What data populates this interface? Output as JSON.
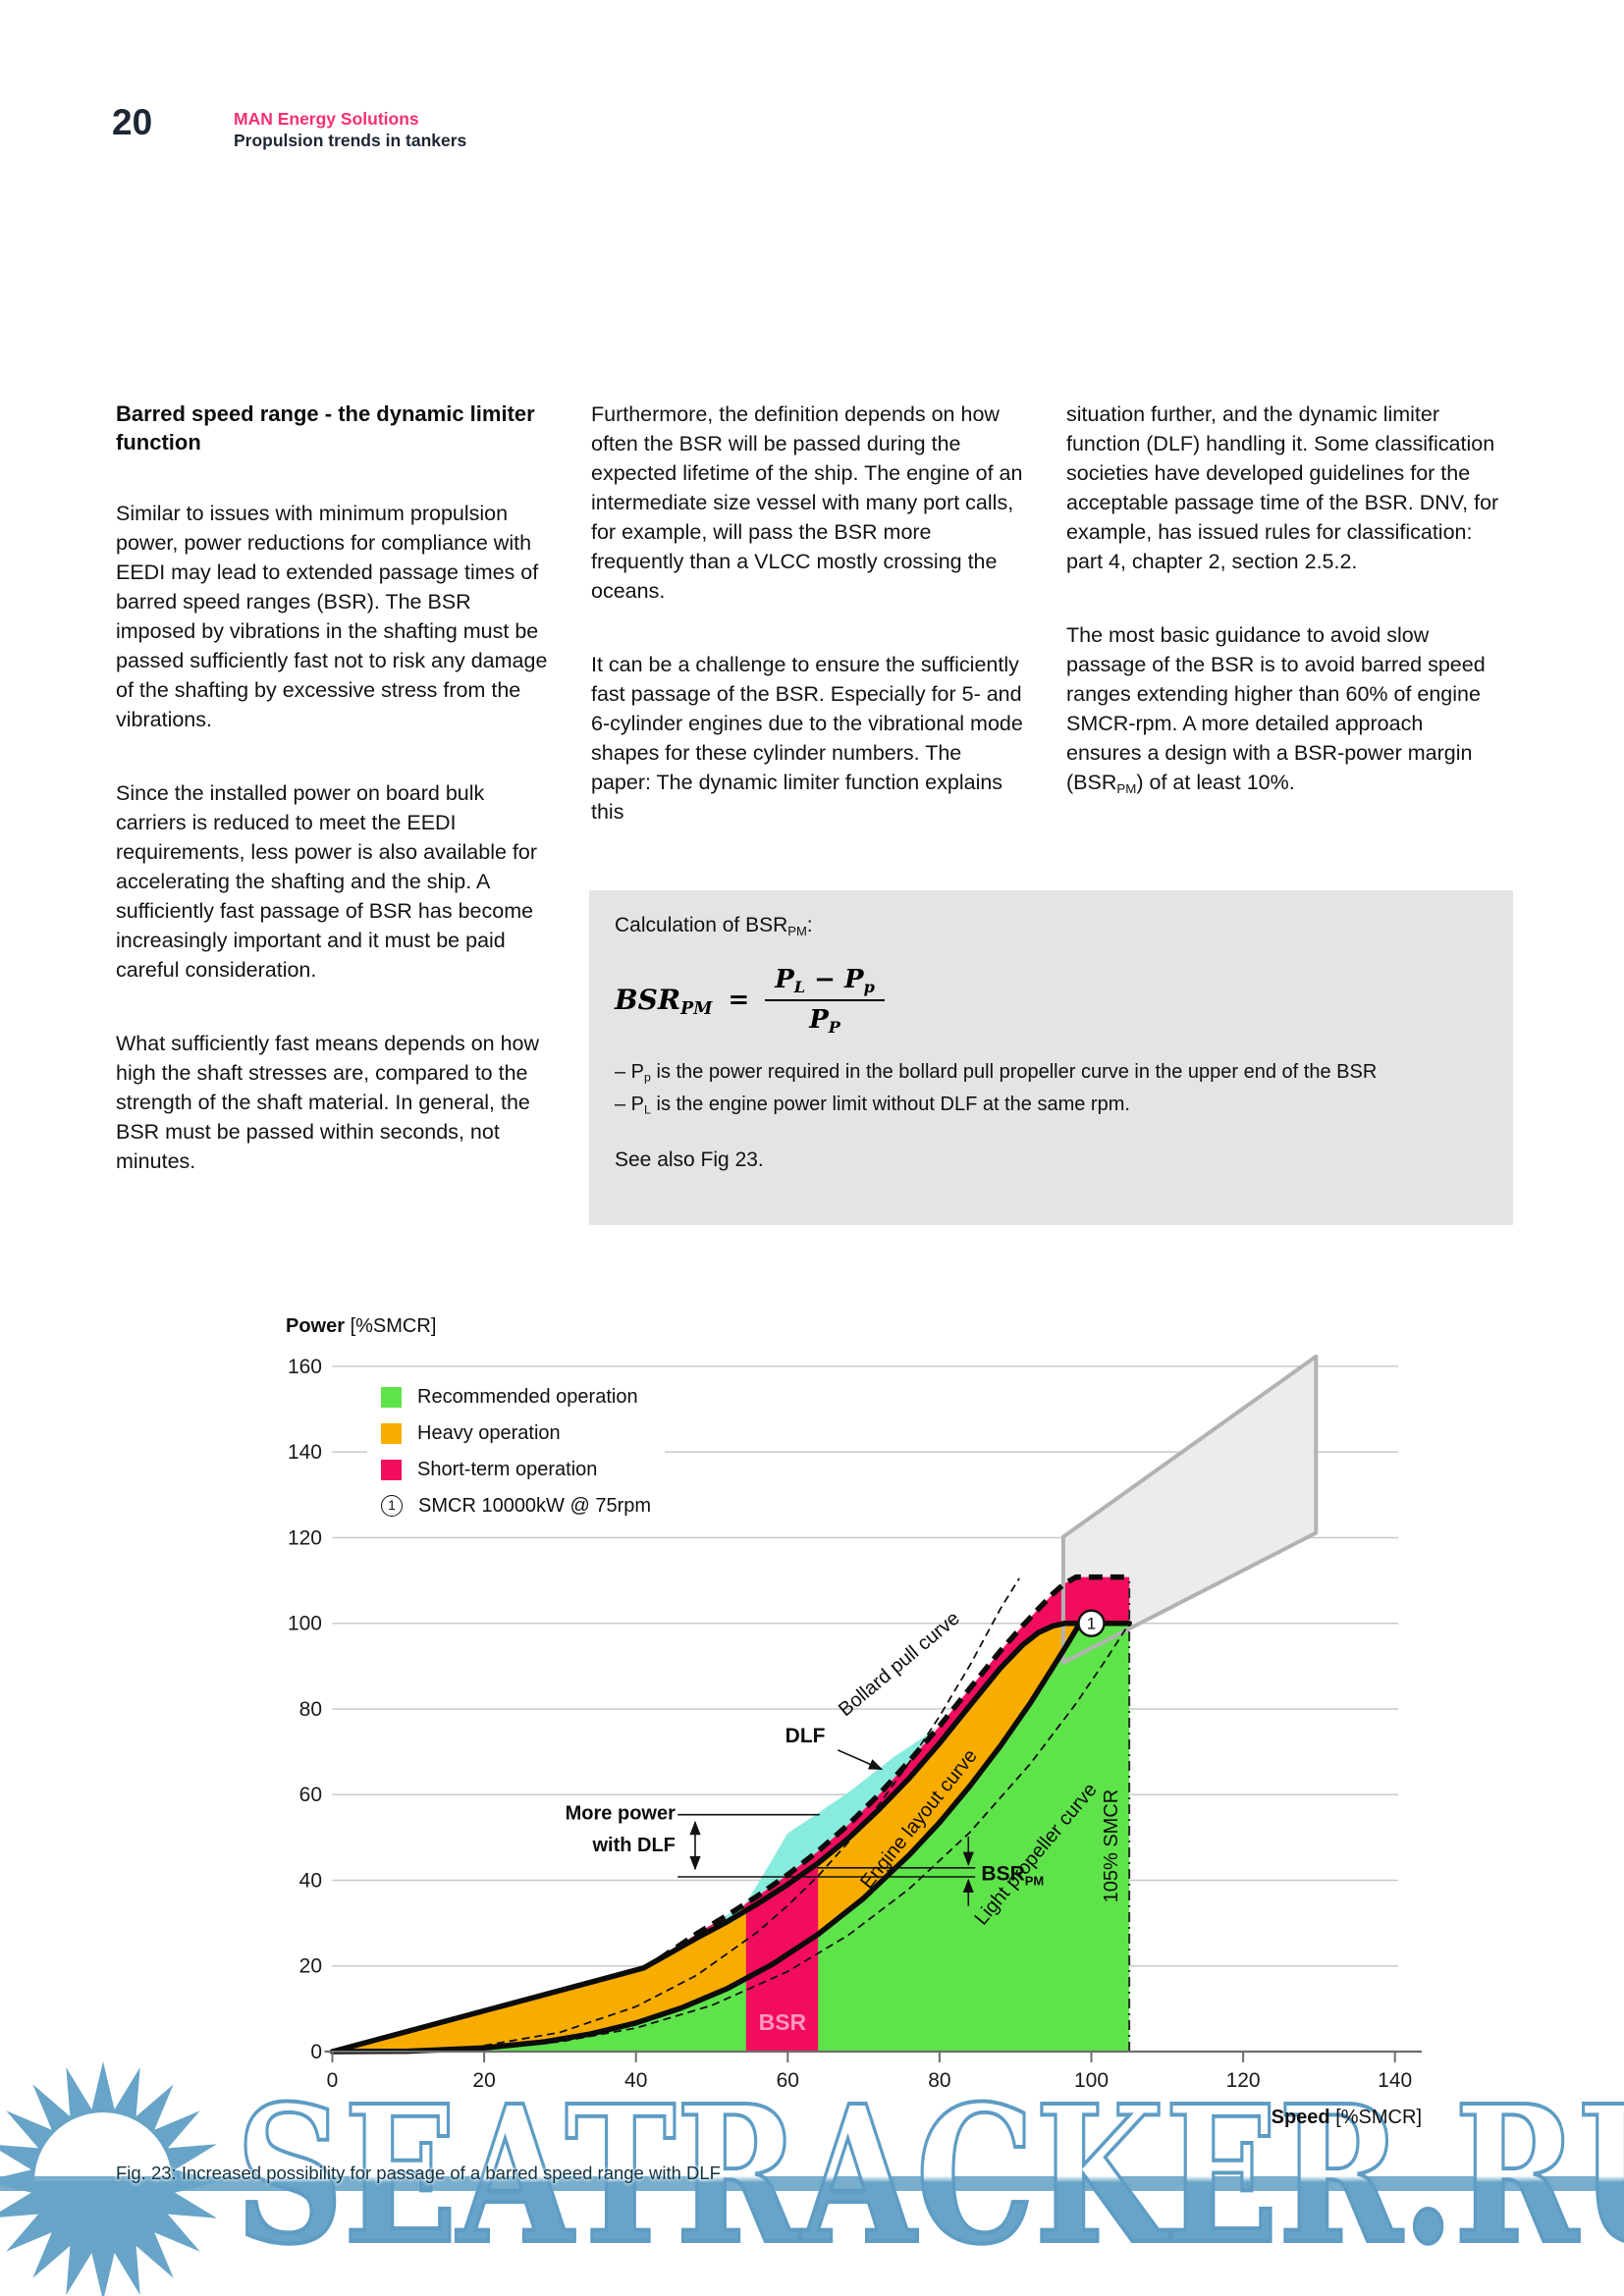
{
  "page": {
    "number": "20",
    "brand": "MAN Energy Solutions",
    "brand_subtitle": "Propulsion trends in tankers",
    "brand_color": "#f5316f"
  },
  "columns": {
    "col1": {
      "heading": "Barred speed range - the dynamic limiter function",
      "p1": "Similar to issues with minimum propulsion power, power reductions for compliance with EEDI may lead to extended passage times of barred speed ranges (BSR). The BSR imposed by vibrations in the shafting must be passed sufficiently fast not to risk any damage of the shafting by excessive stress from the vibrations.",
      "p2": "Since the installed power on board bulk carriers is reduced to meet the EEDI requirements, less power is also available for accelerating the shafting and the ship. A sufficiently fast passage of BSR has become increasingly important and it must be paid careful consideration.",
      "p3": "What sufficiently fast means depends on how high the shaft stresses are, compared to the strength of the shaft material. In general, the BSR must be passed within seconds, not minutes."
    },
    "col2": {
      "p1": "Furthermore, the definition depends on how often the BSR will be passed during the expected lifetime of the ship. The engine of an intermediate size vessel with many port calls, for example, will pass the BSR more frequently than a VLCC mostly crossing the oceans.",
      "p2": "It can be a challenge to ensure the sufficiently fast passage of the BSR. Especially for 5- and 6-cylinder engines due to the vibrational mode shapes for these cylinder numbers. The paper: The dynamic limiter function explains this"
    },
    "col3": {
      "p1": "situation further, and the dynamic limiter function (DLF) handling it. Some classification societies have developed guidelines for the acceptable passage time of the BSR. DNV, for example, has issued rules for classification: part 4, chapter 2, section 2.5.2.",
      "p2_pre": "The most basic guidance to avoid slow passage of the BSR is to avoid barred speed ranges extending higher than 60% of engine SMCR-rpm. A more detailed approach ensures a design with a BSR-power margin (BSR",
      "p2_sub": "PM",
      "p2_post": ") of at least 10%."
    }
  },
  "calc_box": {
    "title_pre": "Calculation of BSR",
    "title_sub": "PM",
    "title_post": ":",
    "f_lhs": "BSR",
    "f_lhs_sub": "PM",
    "f_eq": "=",
    "f_num1": "P",
    "f_num1_sub": "L",
    "f_num2": " − P",
    "f_num2_sub": "p",
    "f_den": "P",
    "f_den_sub": "P",
    "b1_pre": "–  P",
    "b1_sub": "p",
    "b1_post": " is the power required in the bollard pull propeller curve in the upper end of the BSR",
    "b2_pre": "–  P",
    "b2_sub": "L",
    "b2_post": " is the engine power limit without DLF at the same rpm.",
    "see_also": "See also Fig 23."
  },
  "chart_data": {
    "type": "area",
    "title": "Fig. 23: Increased possibility for passage of a barred speed range with DLF",
    "xlabel_bold": "Speed",
    "xlabel_unit": " [%SMCR]",
    "ylabel_bold": "Power",
    "ylabel_unit": " [%SMCR]",
    "xlim": [
      0,
      143
    ],
    "ylim": [
      0,
      165
    ],
    "x_ticks": [
      0,
      20,
      40,
      60,
      80,
      100,
      120,
      140
    ],
    "y_ticks": [
      0,
      20,
      40,
      60,
      80,
      100,
      120,
      140,
      160
    ],
    "grid": "horizontal",
    "legend": [
      {
        "label": "Recommended operation",
        "color": "#5fe34b"
      },
      {
        "label": "Heavy operation",
        "color": "#f9ac00"
      },
      {
        "label": "Short-term operation",
        "color": "#f20c5e"
      },
      {
        "label": "SMCR 10000kW @ 75rpm",
        "marker": "1"
      }
    ],
    "smcr_point": {
      "x": 100,
      "y": 100,
      "marker": "1"
    },
    "bsr_range": [
      54.5,
      64
    ],
    "colors": {
      "recommended": "#5fe34b",
      "heavy": "#f9ac00",
      "short_term": "#f20c5e",
      "dlf_gain": "#87ebdd",
      "layout_diagram_fill": "#ececec",
      "layout_diagram_stroke": "#b2b2b2",
      "grid": "#c9c9c9",
      "bsr_text": "#ff97be"
    },
    "layout_polygon": [
      [
        96.3,
        120.2
      ],
      [
        129.6,
        162.3
      ],
      [
        129.6,
        121.1
      ],
      [
        96.3,
        90.8
      ]
    ],
    "regions": [
      {
        "name": "recommended-region",
        "color": "#5fe34b",
        "points": [
          [
            0,
            0
          ],
          [
            10,
            0.1
          ],
          [
            20,
            0.85
          ],
          [
            28,
            2.3
          ],
          [
            34,
            4.1
          ],
          [
            40,
            6.7
          ],
          [
            46,
            10.2
          ],
          [
            52,
            14.7
          ],
          [
            58,
            20.4
          ],
          [
            64,
            27.4
          ],
          [
            70,
            35.8
          ],
          [
            76,
            45.9
          ],
          [
            80,
            53.5
          ],
          [
            84,
            62
          ],
          [
            88,
            71.3
          ],
          [
            92,
            81.5
          ],
          [
            95,
            89.9
          ],
          [
            97,
            95.6
          ],
          [
            98.5,
            100
          ],
          [
            105,
            100
          ],
          [
            105,
            0
          ]
        ]
      },
      {
        "name": "heavy-region",
        "color": "#f9ac00",
        "points": [
          [
            0,
            0
          ],
          [
            41,
            19.5
          ],
          [
            44,
            22.5
          ],
          [
            48,
            26.5
          ],
          [
            52,
            30.3
          ],
          [
            56,
            34.5
          ],
          [
            60,
            39
          ],
          [
            64,
            44
          ],
          [
            68,
            49.8
          ],
          [
            72,
            56.5
          ],
          [
            76,
            63.8
          ],
          [
            80,
            72
          ],
          [
            84,
            80.8
          ],
          [
            88,
            89.5
          ],
          [
            91,
            95
          ],
          [
            93,
            97.8
          ],
          [
            95,
            99.4
          ],
          [
            96.5,
            100
          ],
          [
            98.5,
            100
          ],
          [
            97,
            95.6
          ],
          [
            95,
            89.9
          ],
          [
            92,
            81.5
          ],
          [
            88,
            71.3
          ],
          [
            84,
            62
          ],
          [
            80,
            53.5
          ],
          [
            76,
            45.9
          ],
          [
            70,
            35.8
          ],
          [
            64,
            27.4
          ],
          [
            58,
            20.4
          ],
          [
            52,
            14.7
          ],
          [
            46,
            10.2
          ],
          [
            40,
            6.7
          ],
          [
            34,
            4.1
          ],
          [
            28,
            2.3
          ],
          [
            20,
            0.85
          ],
          [
            10,
            0.1
          ]
        ]
      },
      {
        "name": "short-term-band",
        "color": "#f20c5e",
        "points": [
          [
            43,
            21.5
          ],
          [
            48,
            27.5
          ],
          [
            52,
            31.8
          ],
          [
            56,
            36.3
          ],
          [
            60,
            41.3
          ],
          [
            64,
            46.8
          ],
          [
            68,
            53
          ],
          [
            72,
            60
          ],
          [
            76,
            67.8
          ],
          [
            80,
            76
          ],
          [
            84,
            84.8
          ],
          [
            88,
            93.5
          ],
          [
            91,
            99.5
          ],
          [
            93,
            103.3
          ],
          [
            95,
            107
          ],
          [
            96.5,
            109.3
          ],
          [
            98,
            110.8
          ],
          [
            105,
            110.8
          ],
          [
            105,
            100
          ],
          [
            96.5,
            100
          ],
          [
            95,
            99.4
          ],
          [
            93,
            97.8
          ],
          [
            91,
            95
          ],
          [
            88,
            89.5
          ],
          [
            84,
            80.8
          ],
          [
            80,
            72
          ],
          [
            76,
            63.8
          ],
          [
            72,
            56.5
          ],
          [
            68,
            49.8
          ],
          [
            64,
            44
          ],
          [
            60,
            39
          ],
          [
            56,
            34.5
          ],
          [
            52,
            30.3
          ],
          [
            48,
            26.5
          ],
          [
            44,
            22.5
          ]
        ]
      },
      {
        "name": "bsr-bar",
        "color": "#f20c5e",
        "points": [
          [
            54.5,
            0
          ],
          [
            54.5,
            33.2
          ],
          [
            58,
            36.8
          ],
          [
            60,
            39
          ],
          [
            64,
            44
          ],
          [
            64,
            0
          ]
        ]
      },
      {
        "name": "dlf-gain-region",
        "color": "#87ebdd",
        "points": [
          [
            48,
            26.5
          ],
          [
            53,
            30.5
          ],
          [
            56,
            39
          ],
          [
            60,
            51
          ],
          [
            63,
            54.5
          ],
          [
            68,
            60.5
          ],
          [
            74,
            68.8
          ],
          [
            78,
            73.5
          ],
          [
            79.8,
            76
          ],
          [
            76,
            67.8
          ],
          [
            72,
            60
          ],
          [
            68,
            53
          ],
          [
            64,
            46.8
          ],
          [
            60,
            41.3
          ],
          [
            56,
            36.3
          ],
          [
            52,
            31.8
          ]
        ]
      }
    ],
    "curves": [
      {
        "name": "light-propeller-curve",
        "style": "thindash",
        "points": [
          [
            12,
            0.15
          ],
          [
            20,
            0.7
          ],
          [
            30,
            2.3
          ],
          [
            40,
            5.5
          ],
          [
            50,
            10.8
          ],
          [
            60,
            18.7
          ],
          [
            68,
            27.2
          ],
          [
            76,
            38
          ],
          [
            84,
            51.2
          ],
          [
            92,
            67.3
          ],
          [
            98,
            81.3
          ],
          [
            102,
            91.7
          ],
          [
            105,
            100
          ]
        ]
      },
      {
        "name": "bollard-pull-curve",
        "style": "thindash",
        "points": [
          [
            20,
            1.4
          ],
          [
            30,
            4.5
          ],
          [
            40,
            10.5
          ],
          [
            48,
            17.8
          ],
          [
            56,
            27.9
          ],
          [
            60,
            34.1
          ],
          [
            64,
            41
          ],
          [
            68,
            48.9
          ],
          [
            72,
            57.6
          ],
          [
            76,
            67.5
          ],
          [
            80,
            78.3
          ],
          [
            84,
            90.2
          ],
          [
            88,
            103.3
          ],
          [
            90.5,
            110.5
          ]
        ]
      },
      {
        "name": "heavy-propeller-curve",
        "style": "bold",
        "points": [
          [
            0,
            0
          ],
          [
            10,
            0.1
          ],
          [
            20,
            0.85
          ],
          [
            28,
            2.3
          ],
          [
            34,
            4.1
          ],
          [
            40,
            6.7
          ],
          [
            46,
            10.2
          ],
          [
            52,
            14.7
          ],
          [
            58,
            20.4
          ],
          [
            64,
            27.4
          ],
          [
            70,
            35.8
          ],
          [
            76,
            45.9
          ],
          [
            80,
            53.5
          ],
          [
            84,
            62
          ],
          [
            88,
            71.3
          ],
          [
            92,
            81.5
          ],
          [
            95,
            89.9
          ],
          [
            97,
            95.6
          ],
          [
            98.5,
            100
          ]
        ]
      },
      {
        "name": "engine-layout-curve",
        "style": "bold",
        "points": [
          [
            0,
            0
          ],
          [
            41,
            19.5
          ],
          [
            44,
            22.5
          ],
          [
            48,
            26.5
          ],
          [
            52,
            30.3
          ],
          [
            56,
            34.5
          ],
          [
            60,
            39
          ],
          [
            64,
            44
          ],
          [
            68,
            49.8
          ],
          [
            72,
            56.5
          ],
          [
            76,
            63.8
          ],
          [
            80,
            72
          ],
          [
            84,
            80.8
          ],
          [
            88,
            89.5
          ],
          [
            91,
            95
          ],
          [
            93,
            97.8
          ],
          [
            95,
            99.4
          ],
          [
            96.5,
            100
          ],
          [
            105,
            100
          ]
        ]
      },
      {
        "name": "engine-limit-with-dlf-curve",
        "style": "bolddash",
        "points": [
          [
            43,
            21.5
          ],
          [
            48,
            27.5
          ],
          [
            52,
            31.8
          ],
          [
            56,
            36.3
          ],
          [
            60,
            41.3
          ],
          [
            64,
            46.8
          ],
          [
            68,
            53
          ],
          [
            72,
            60
          ],
          [
            76,
            67.8
          ],
          [
            80,
            76
          ],
          [
            84,
            84.8
          ],
          [
            88,
            93.5
          ],
          [
            91,
            99.5
          ],
          [
            93,
            103.3
          ],
          [
            95,
            107
          ],
          [
            96.5,
            109.3
          ],
          [
            98,
            110.8
          ],
          [
            104.6,
            110.8
          ]
        ]
      }
    ],
    "smcr_105_line": {
      "x": 105,
      "y_top": 110.8,
      "label": "105% SMCR"
    },
    "ann_lines": [
      {
        "x1": 45.5,
        "y1": 55.3,
        "x2": 64.2,
        "y2": 55.3
      },
      {
        "x1": 45.5,
        "y1": 40.8,
        "x2": 84.7,
        "y2": 40.8
      },
      {
        "x1": 63.9,
        "y1": 42.9,
        "x2": 84.7,
        "y2": 42.9
      }
    ],
    "ann_arrows": [
      {
        "x1": 47.8,
        "y1": 53.6,
        "x2": 47.8,
        "y2": 42.6,
        "both": true
      },
      {
        "x1": 83.8,
        "y1": 50.2,
        "x2": 83.8,
        "y2": 43.6
      },
      {
        "x1": 83.8,
        "y1": 34.0,
        "x2": 83.8,
        "y2": 40.1
      },
      {
        "x1": 66.6,
        "y1": 70.4,
        "x2": 72.4,
        "y2": 65.9
      }
    ],
    "text_labels": [
      {
        "name": "dlf-label",
        "text": "DLF",
        "x": 62.3,
        "y": 72.2,
        "size": 21,
        "bold": true,
        "anchor": "middle"
      },
      {
        "name": "more-power-label-1",
        "text": "More power",
        "x": 45.2,
        "y": 54.2,
        "size": 20,
        "bold": true,
        "anchor": "end"
      },
      {
        "name": "more-power-label-2",
        "text": "with DLF",
        "x": 45.2,
        "y": 46.7,
        "size": 20,
        "bold": true,
        "anchor": "end"
      },
      {
        "name": "bsr-pm-label",
        "text": "BSR",
        "sub": "PM",
        "x": 85.5,
        "y": 40.0,
        "size": 21,
        "bold": true,
        "anchor": "start"
      },
      {
        "name": "bollard-pull-label",
        "text": "Bollard pull curve",
        "x": 75.2,
        "y": 89.4,
        "size": 20,
        "rotate": -40,
        "anchor": "middle"
      },
      {
        "name": "engine-layout-label",
        "text": "Engine layout curve",
        "x": 77.9,
        "y": 53.4,
        "size": 20,
        "rotate": -51,
        "anchor": "middle"
      },
      {
        "name": "light-propeller-label",
        "text": "Light propeller curve",
        "x": 93.3,
        "y": 45.2,
        "size": 20,
        "rotate": -50,
        "anchor": "middle"
      },
      {
        "name": "smcr-105-label",
        "text": "105% SMCR",
        "x": 103.4,
        "y": 48,
        "size": 20,
        "rotate": -90,
        "anchor": "middle"
      },
      {
        "name": "bsr-label",
        "text": "BSR",
        "x": 59.3,
        "y": 5.0,
        "size": 23,
        "bold": true,
        "anchor": "middle",
        "color": "#ff97be"
      }
    ]
  },
  "watermark": {
    "text": "SEATRACKER.RU",
    "color": "#68a4c8"
  },
  "caption": "Fig. 23: Increased possibility for passage of a barred speed range with DLF"
}
